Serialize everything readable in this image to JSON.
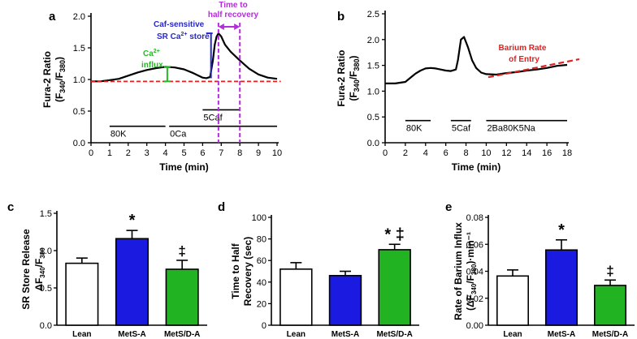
{
  "figure": {
    "panels": [
      "a",
      "b",
      "c",
      "d",
      "e"
    ]
  },
  "chart_data": [
    {
      "id": "a",
      "type": "line",
      "xlabel": "Time (min)",
      "ylabel_main": "Fura-2 Ratio",
      "ylabel_sub": "(F340/F380)",
      "xlim": [
        0,
        10
      ],
      "ylim": [
        0.0,
        2.0
      ],
      "xticks": [
        0,
        1,
        2,
        3,
        4,
        5,
        6,
        7,
        8,
        9,
        10
      ],
      "yticks": [
        "0.0",
        "0.5",
        "1.0",
        "1.5",
        "2.0"
      ],
      "trace": {
        "x": [
          0.0,
          0.5,
          1.0,
          1.5,
          2.0,
          2.5,
          3.0,
          3.5,
          4.0,
          4.5,
          5.0,
          5.5,
          6.0,
          6.2,
          6.4,
          6.55,
          6.65,
          6.75,
          6.85,
          7.0,
          7.2,
          7.5,
          8.0,
          8.5,
          9.0,
          9.5,
          10.0
        ],
        "y": [
          0.97,
          0.97,
          0.99,
          1.01,
          1.06,
          1.11,
          1.15,
          1.18,
          1.2,
          1.19,
          1.16,
          1.1,
          1.03,
          1.02,
          1.04,
          1.3,
          1.55,
          1.68,
          1.73,
          1.68,
          1.55,
          1.44,
          1.3,
          1.17,
          1.08,
          1.03,
          1.01
        ]
      },
      "baseline": {
        "y": 0.97,
        "color": "#e02020"
      },
      "stim_bars": [
        {
          "label": "80K",
          "x": [
            1.0,
            4.0
          ],
          "y": 0.26
        },
        {
          "label": "0Ca",
          "x": [
            4.2,
            10.0
          ],
          "y": 0.26
        },
        {
          "label": "5Caf",
          "x": [
            6.0,
            8.0
          ],
          "y": 0.52
        }
      ],
      "annotations": {
        "caf_label_line1": "Caf-sensitive",
        "caf_label_line2": "SR Ca",
        "caf_label_sup": "2+",
        "caf_label_tail": " store",
        "influx_line1": "Ca",
        "influx_sup": "2+",
        "influx_line2": "influx",
        "half_line1": "Time to",
        "half_line2": "half recovery"
      },
      "colors": {
        "trace": "#000000",
        "caf": "#2828c8",
        "influx": "#22bb22",
        "half": "#b22fd8"
      }
    },
    {
      "id": "b",
      "type": "line",
      "xlabel": "Time (min)",
      "ylabel_main": "Fura-2 Ratio",
      "ylabel_sub": "(F340/F380)",
      "xlim": [
        0,
        18
      ],
      "ylim": [
        0.0,
        2.5
      ],
      "xticks": [
        0,
        2,
        4,
        6,
        8,
        10,
        12,
        14,
        16,
        18
      ],
      "yticks": [
        "0.0",
        "0.5",
        "1.0",
        "1.5",
        "2.0",
        "2.5"
      ],
      "trace": {
        "x": [
          0,
          1,
          2,
          2.5,
          3,
          3.5,
          4,
          4.5,
          5,
          5.5,
          6,
          6.5,
          7,
          7.2,
          7.5,
          7.8,
          8.2,
          8.6,
          9,
          9.5,
          10,
          11,
          12,
          13,
          14,
          15,
          16,
          17,
          18
        ],
        "y": [
          1.15,
          1.15,
          1.18,
          1.26,
          1.34,
          1.4,
          1.44,
          1.45,
          1.44,
          1.42,
          1.4,
          1.39,
          1.42,
          1.6,
          2.0,
          2.05,
          1.85,
          1.6,
          1.45,
          1.36,
          1.33,
          1.32,
          1.35,
          1.37,
          1.4,
          1.42,
          1.45,
          1.49,
          1.51
        ]
      },
      "fit_line": {
        "x": [
          10.2,
          19.2
        ],
        "y": [
          1.27,
          1.62
        ],
        "color": "#e02020"
      },
      "stim_bars": [
        {
          "label": "80K",
          "x": [
            2.0,
            4.5
          ],
          "y": 0.43
        },
        {
          "label": "5Caf",
          "x": [
            6.5,
            8.5
          ],
          "y": 0.43
        },
        {
          "label": "2Ba80K5Na",
          "x": [
            10.0,
            18.0
          ],
          "y": 0.43
        }
      ],
      "annotations": {
        "barium_line1": "Barium Rate",
        "barium_line2": "of Entry"
      }
    },
    {
      "id": "c",
      "type": "bar",
      "categories": [
        "Lean",
        "MetS-A",
        "MetS/D-A"
      ],
      "values": [
        0.83,
        1.16,
        0.75
      ],
      "errors": [
        0.07,
        0.11,
        0.12
      ],
      "colors": [
        "#ffffff",
        "#1a1ae0",
        "#22b322"
      ],
      "ylim": [
        0.0,
        1.5
      ],
      "yticks": [
        "0.0",
        "0.5",
        "1.0",
        "1.5"
      ],
      "ylabel_line1": "SR Store Release",
      "ylabel_line2": "ΔF340/F380",
      "markers": [
        "",
        "*",
        "‡"
      ]
    },
    {
      "id": "d",
      "type": "bar",
      "categories": [
        "Lean",
        "MetS-A",
        "MetS/D-A"
      ],
      "values": [
        52,
        46,
        70
      ],
      "errors": [
        6,
        4,
        5
      ],
      "colors": [
        "#ffffff",
        "#1a1ae0",
        "#22b322"
      ],
      "ylim": [
        0,
        100
      ],
      "yticks": [
        "0",
        "20",
        "40",
        "60",
        "80",
        "100"
      ],
      "ylabel_line1": "Time to Half",
      "ylabel_line2": "Recovery (sec)",
      "markers": [
        "",
        "",
        "* ‡"
      ]
    },
    {
      "id": "e",
      "type": "bar",
      "categories": [
        "Lean",
        "MetS-A",
        "MetS/D-A"
      ],
      "values": [
        0.0365,
        0.0558,
        0.0295
      ],
      "errors": [
        0.0045,
        0.0075,
        0.004
      ],
      "colors": [
        "#ffffff",
        "#1a1ae0",
        "#22b322"
      ],
      "ylim": [
        0.0,
        0.08
      ],
      "yticks": [
        "0.00",
        "0.02",
        "0.04",
        "0.06",
        "0.08"
      ],
      "ylabel_line1": "Rate of Barium Influx",
      "ylabel_line2": "(ΔF340/F380)·min⁻¹",
      "markers": [
        "",
        "*",
        "‡"
      ]
    }
  ]
}
